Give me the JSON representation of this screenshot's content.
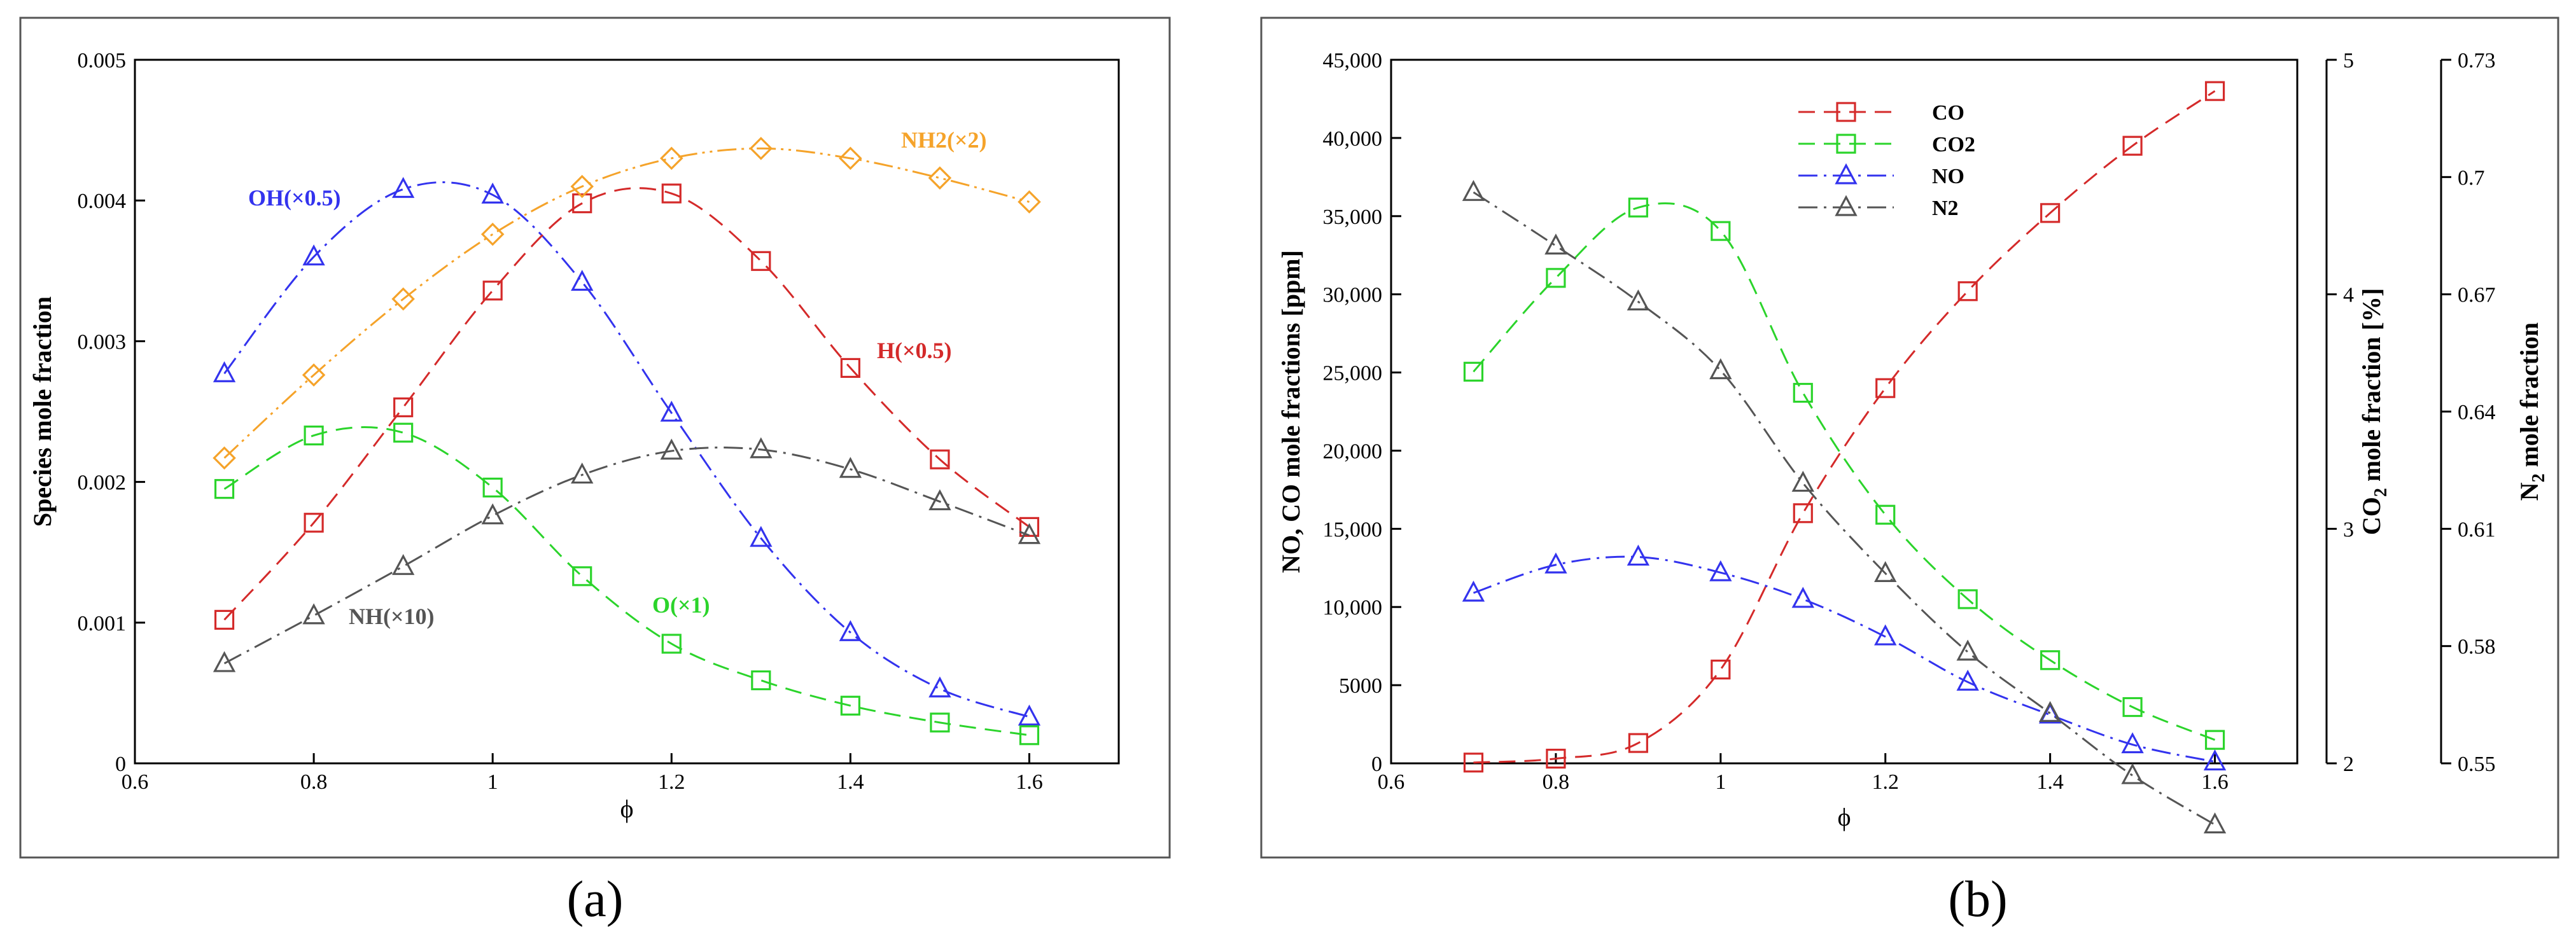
{
  "colors": {
    "red": "#d42a2a",
    "green": "#2bd42b",
    "blue": "#3333ee",
    "orange": "#f5a32a",
    "gray": "#555555",
    "axis": "#000000",
    "frame": "#555555"
  },
  "chart_data": [
    {
      "panel_label": "(a)",
      "type": "line",
      "xlabel": "ϕ",
      "ylabel": "Species mole fraction",
      "xlim": [
        0.6,
        1.7
      ],
      "ylim": [
        0,
        0.005
      ],
      "xticks": [
        0.6,
        0.8,
        1.0,
        1.2,
        1.4,
        1.6
      ],
      "xtick_labels": [
        "0.6",
        "0.8",
        "1",
        "1.2",
        "1.4",
        "1.6"
      ],
      "yticks": [
        0,
        0.001,
        0.002,
        0.003,
        0.004,
        0.005
      ],
      "ytick_labels": [
        "0",
        "0.001",
        "0.002",
        "0.003",
        "0.004",
        "0.005"
      ],
      "grid": false,
      "x": [
        0.7,
        0.8,
        0.9,
        1.0,
        1.1,
        1.2,
        1.3,
        1.4,
        1.5,
        1.6
      ],
      "series": [
        {
          "name": "OH(×0.5)",
          "color": "blue",
          "marker": "triangle",
          "dash": "dashdot",
          "values": [
            0.00277,
            0.0036,
            0.00408,
            0.00404,
            0.00342,
            0.00249,
            0.0016,
            0.00093,
            0.00053,
            0.00033
          ]
        },
        {
          "name": "H(×0.5)",
          "color": "red",
          "marker": "square",
          "dash": "dash",
          "values": [
            0.00102,
            0.00171,
            0.00253,
            0.00336,
            0.00398,
            0.00405,
            0.00357,
            0.00281,
            0.00216,
            0.00168
          ]
        },
        {
          "name": "NH2(×2)",
          "color": "orange",
          "marker": "diamond",
          "dash": "dashdotdot",
          "values": [
            0.00217,
            0.00276,
            0.0033,
            0.00376,
            0.0041,
            0.0043,
            0.00437,
            0.0043,
            0.00416,
            0.00399
          ]
        },
        {
          "name": "O(×1)",
          "color": "green",
          "marker": "square",
          "dash": "dash",
          "values": [
            0.00195,
            0.00233,
            0.00235,
            0.00196,
            0.00133,
            0.00085,
            0.00059,
            0.00041,
            0.00029,
            0.0002
          ]
        },
        {
          "name": "NH(×10)",
          "color": "gray",
          "marker": "triangle",
          "dash": "dashdot",
          "values": [
            0.00071,
            0.00105,
            0.0014,
            0.00176,
            0.00205,
            0.00222,
            0.00223,
            0.00209,
            0.00186,
            0.00162
          ]
        }
      ]
    },
    {
      "panel_label": "(b)",
      "type": "line",
      "xlabel": "ϕ",
      "ylabel_left": "NO, CO mole fractions [ppm]",
      "ylabel_mid_main": "CO",
      "ylabel_mid_sub": "2",
      "ylabel_mid_rest": " mole fraction [%]",
      "ylabel_right_main": "N",
      "ylabel_right_sub": "2",
      "ylabel_right_rest": " mole fraction",
      "xlim": [
        0.6,
        1.7
      ],
      "ylim_left": [
        0,
        45000
      ],
      "ylim_mid": [
        2,
        5
      ],
      "ylim_right": [
        0.55,
        0.73
      ],
      "xticks": [
        0.6,
        0.8,
        1.0,
        1.2,
        1.4,
        1.6
      ],
      "xtick_labels": [
        "0.6",
        "0.8",
        "1",
        "1.2",
        "1.4",
        "1.6"
      ],
      "yticks_left": [
        0,
        5000,
        10000,
        15000,
        20000,
        25000,
        30000,
        35000,
        40000,
        45000
      ],
      "ytick_labels_left": [
        "0",
        "5000",
        "10,000",
        "15,000",
        "20,000",
        "25,000",
        "30,000",
        "35,000",
        "40,000",
        "45,000"
      ],
      "yticks_mid": [
        2,
        3,
        4,
        5
      ],
      "ytick_labels_mid": [
        "2",
        "3",
        "4",
        "5"
      ],
      "yticks_right": [
        0.55,
        0.58,
        0.61,
        0.64,
        0.67,
        0.7,
        0.73
      ],
      "ytick_labels_right": [
        "0.55",
        "0.58",
        "0.61",
        "0.64",
        "0.67",
        "0.7",
        "0.73"
      ],
      "grid": false,
      "legend_position": "top-center",
      "x": [
        0.7,
        0.8,
        0.9,
        1.0,
        1.1,
        1.2,
        1.3,
        1.4,
        1.5,
        1.6
      ],
      "series": [
        {
          "name": "CO",
          "color": "red",
          "marker": "square",
          "dash": "dash",
          "axis": "left",
          "unit": "ppm",
          "values": [
            50,
            300,
            1300,
            6000,
            16000,
            24000,
            30200,
            35200,
            39500,
            43000
          ]
        },
        {
          "name": "CO2",
          "color": "green",
          "marker": "square",
          "dash": "dash",
          "axis": "mid",
          "unit": "%",
          "values": [
            3.67,
            4.07,
            4.37,
            4.27,
            3.58,
            3.06,
            2.7,
            2.44,
            2.24,
            2.1
          ]
        },
        {
          "name": "NO",
          "color": "blue",
          "marker": "triangle",
          "dash": "dashdot",
          "axis": "left",
          "unit": "ppm",
          "values": [
            10900,
            12700,
            13200,
            12200,
            10500,
            8100,
            5200,
            3100,
            1200,
            100
          ]
        },
        {
          "name": "N2",
          "color": "gray",
          "marker": "triangle",
          "dash": "dashdot",
          "axis": "right",
          "unit": "",
          "values": [
            0.6961,
            0.6824,
            0.6681,
            0.6505,
            0.6217,
            0.5986,
            0.5785,
            0.5628,
            0.5469,
            0.5343
          ]
        }
      ]
    }
  ]
}
